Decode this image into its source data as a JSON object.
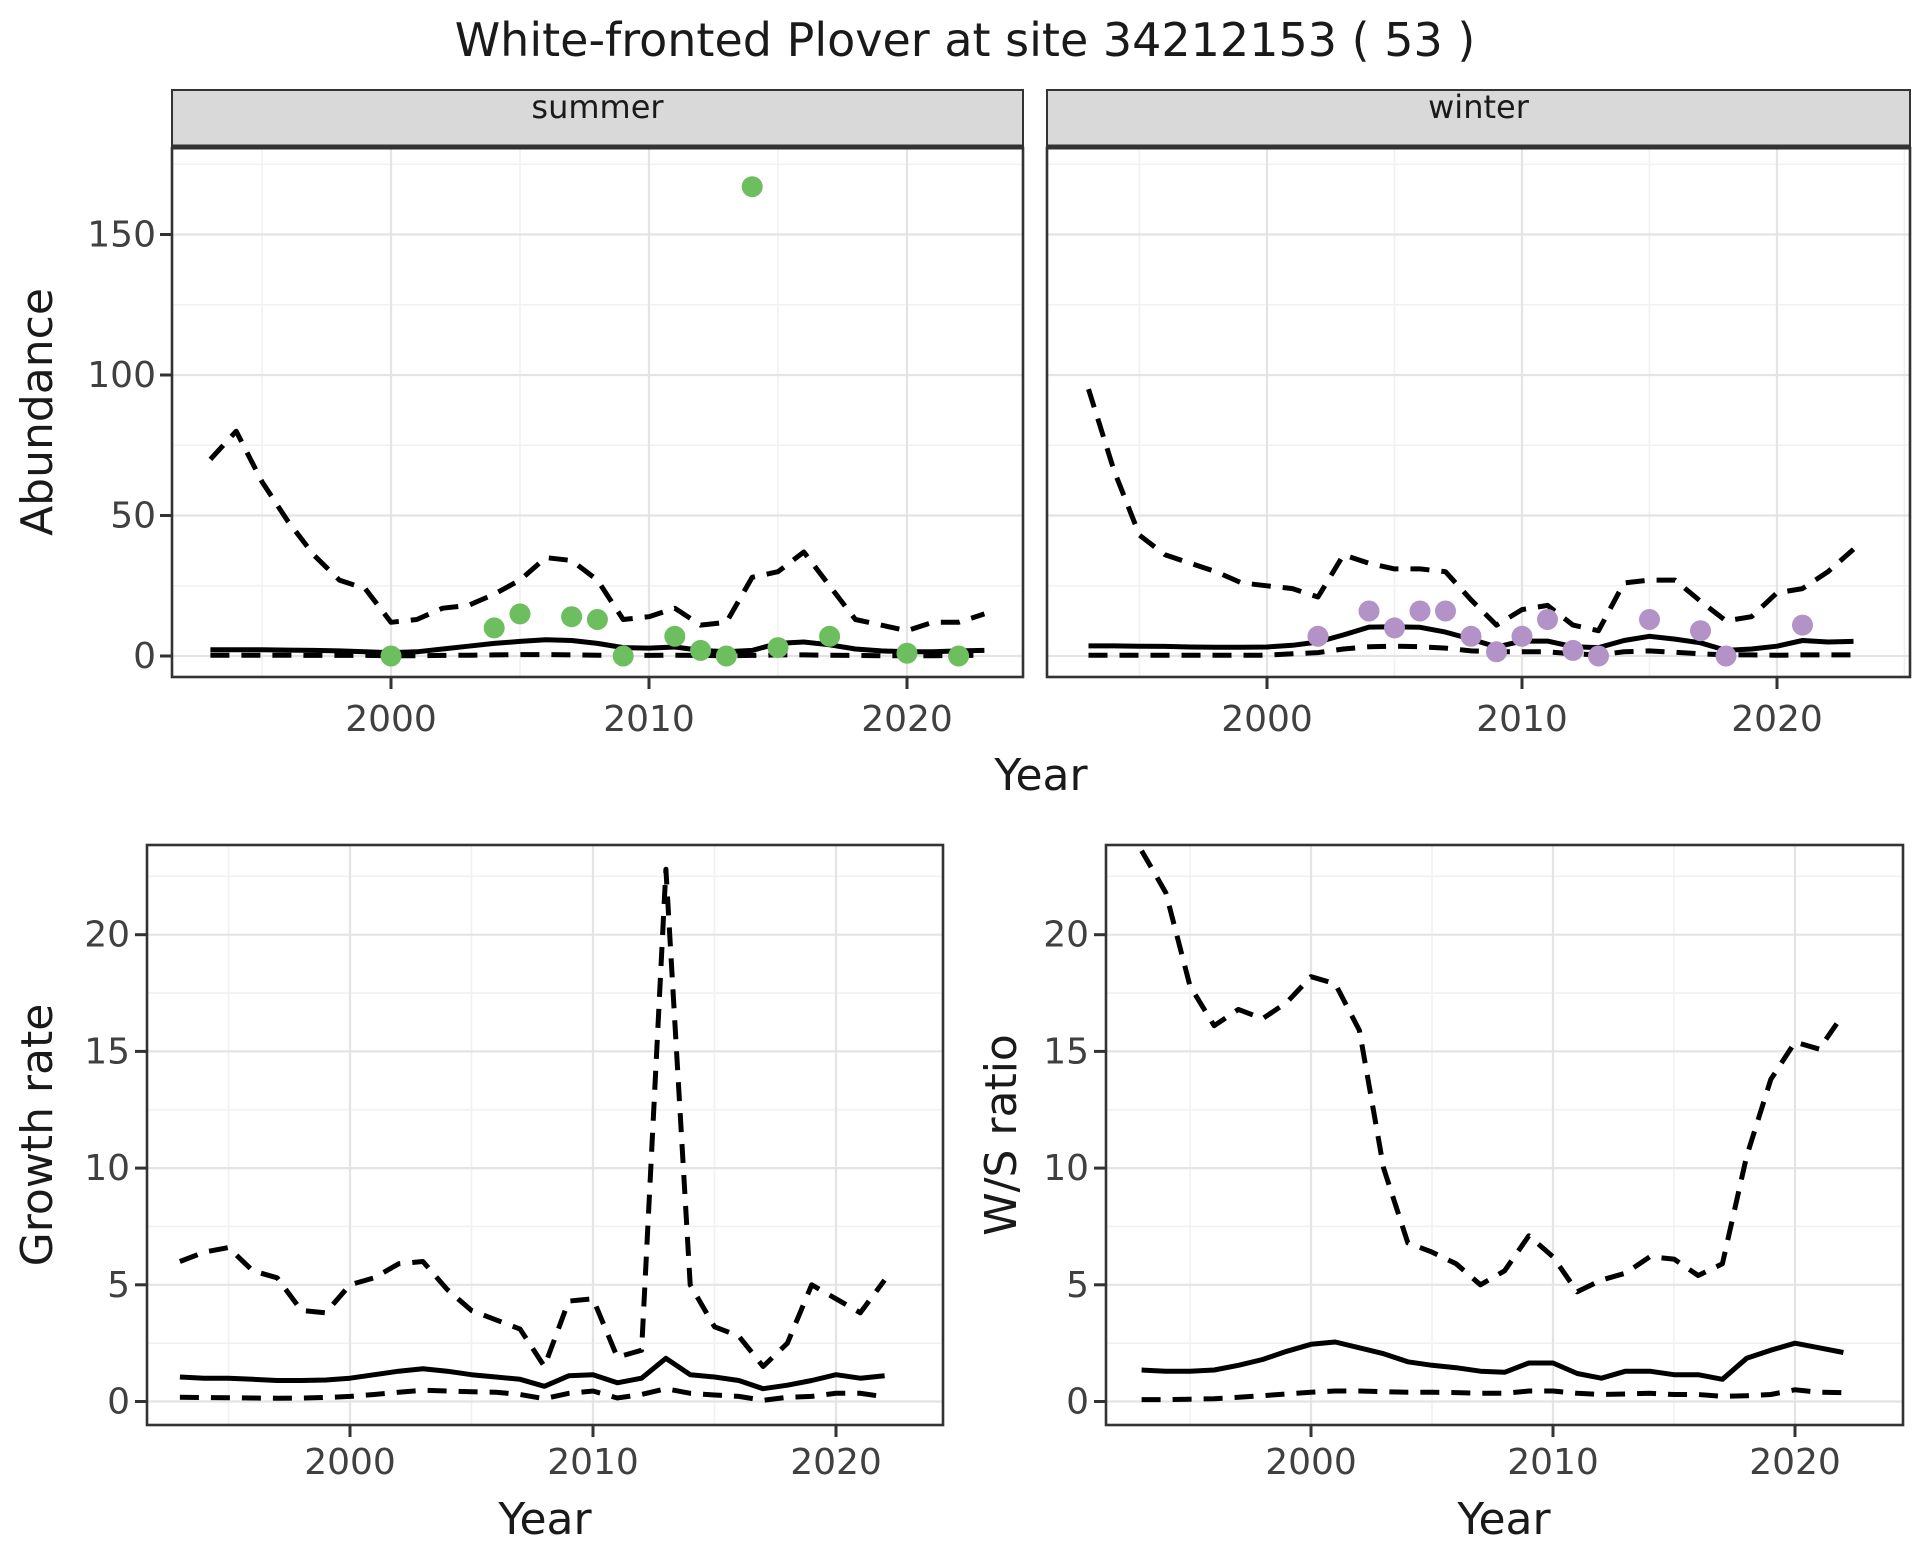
{
  "title": "White-fronted Plover at site 34212153 ( 53 )",
  "colors": {
    "summer_points": "#6DBE5E",
    "winter_points": "#B292C7",
    "line": "#000000",
    "strip_bg": "#D9D9D9",
    "strip_border": "#333333",
    "panel_border": "#333333",
    "panel_bg": "#FFFFFF",
    "grid_major": "#E4E4E4",
    "grid_minor": "#F1F1F1",
    "tick_label": "#404040",
    "text": "#1A1A1A"
  },
  "chart_data": {
    "type": "line+scatter",
    "layout_note": "2x2 panel figure; top row is a faceted abundance plot (summer | winter) sharing one x axis title; bottom row has two independent panels",
    "top_row_xlabel": "Year",
    "panels": [
      {
        "id": "summer",
        "facet_label": "summer",
        "ylabel": "Abundance",
        "xlabel": "Year",
        "xticks": [
          2000,
          2010,
          2020
        ],
        "yticks": [
          0,
          50,
          100,
          150
        ],
        "xlim": [
          1991.5,
          2024.5
        ],
        "ylim": [
          -7,
          181
        ],
        "grid": true,
        "point_color_key": "summer_points",
        "points": {
          "years": [
            2000,
            2004,
            2005,
            2007,
            2008,
            2009,
            2011,
            2012,
            2013,
            2014,
            2015,
            2017,
            2020,
            2022
          ],
          "values": [
            0,
            10,
            15,
            14,
            13,
            0,
            7,
            2,
            0,
            167,
            3,
            7,
            1,
            0
          ]
        },
        "median_line": {
          "start_year": 1993,
          "values": [
            2.2,
            2.2,
            2.2,
            2.1,
            2.0,
            1.8,
            1.5,
            1.2,
            1.5,
            2.5,
            3.5,
            4.5,
            5.2,
            5.8,
            5.5,
            4.5,
            3.0,
            2.8,
            3.2,
            2.0,
            1.5,
            2.0,
            4.5,
            5.0,
            4.0,
            2.5,
            1.8,
            1.5,
            1.5,
            1.8,
            2.0
          ]
        },
        "upper_ci": {
          "start_year": 1993,
          "values": [
            70,
            80,
            62,
            48,
            36,
            27,
            24,
            12,
            13,
            17,
            18,
            22,
            27,
            35,
            34,
            27,
            13,
            14,
            17,
            11,
            12,
            28,
            30,
            37,
            25,
            13,
            11,
            9,
            12,
            12,
            15
          ]
        },
        "lower_ci": {
          "start_year": 1993,
          "values": [
            0.3,
            0.3,
            0.3,
            0.3,
            0.2,
            0.2,
            0.2,
            0.1,
            0.1,
            0.2,
            0.3,
            0.4,
            0.5,
            0.5,
            0.4,
            0.3,
            0.2,
            0.2,
            0.3,
            0.2,
            0.1,
            0.2,
            0.4,
            0.4,
            0.3,
            0.2,
            0.1,
            0.1,
            0.1,
            0.2,
            0.2
          ]
        }
      },
      {
        "id": "winter",
        "facet_label": "winter",
        "ylabel": "Abundance",
        "xlabel": "Year",
        "xticks": [
          2000,
          2010,
          2020
        ],
        "yticks": [
          0,
          50,
          100,
          150
        ],
        "xlim": [
          1991.4,
          2025.2
        ],
        "ylim": [
          -7,
          181
        ],
        "grid": true,
        "point_color_key": "winter_points",
        "points": {
          "years": [
            2002,
            2004,
            2005,
            2006,
            2007,
            2008,
            2009,
            2010,
            2011,
            2012,
            2013,
            2015,
            2017,
            2018,
            2021
          ],
          "values": [
            7,
            16,
            10,
            16,
            16,
            7,
            1.5,
            7,
            13,
            2,
            0,
            13,
            9,
            0,
            11
          ]
        },
        "median_line": {
          "start_year": 1993,
          "values": [
            3.6,
            3.6,
            3.5,
            3.4,
            3.2,
            3.1,
            3.1,
            3.2,
            3.8,
            5.0,
            7.5,
            10.3,
            10.4,
            10.2,
            8.5,
            6.0,
            3.2,
            5.3,
            5.3,
            3.3,
            3.0,
            5.5,
            7.0,
            6.0,
            4.7,
            2.0,
            2.5,
            3.5,
            5.5,
            5.0,
            5.2
          ]
        },
        "upper_ci": {
          "start_year": 1993,
          "values": [
            95,
            66,
            43,
            36,
            33,
            30,
            26,
            25,
            24,
            21,
            36,
            33,
            31,
            31,
            30,
            20,
            11,
            16.5,
            18,
            11,
            9,
            26,
            27,
            27,
            19.5,
            12.5,
            14,
            22.5,
            24,
            30,
            38
          ]
        },
        "lower_ci": {
          "start_year": 1993,
          "values": [
            0.3,
            0.3,
            0.3,
            0.3,
            0.3,
            0.3,
            0.3,
            0.3,
            0.8,
            1.2,
            2.5,
            3.3,
            3.5,
            3.3,
            2.8,
            1.8,
            1.5,
            1.5,
            1.5,
            0.8,
            0.4,
            1.5,
            1.8,
            1.3,
            0.8,
            0.4,
            0.4,
            0.3,
            0.4,
            0.4,
            0.4
          ]
        }
      },
      {
        "id": "growth_rate",
        "facet_label": null,
        "ylabel": "Growth rate",
        "xlabel": "Year",
        "xticks": [
          2000,
          2010,
          2020
        ],
        "yticks": [
          0,
          5,
          10,
          15,
          20
        ],
        "xlim": [
          1991.7,
          2024.4
        ],
        "ylim": [
          -1,
          23.9
        ],
        "grid": true,
        "points": null,
        "median_line": {
          "start_year": 1993,
          "values": [
            1.05,
            1.0,
            1.0,
            0.95,
            0.9,
            0.9,
            0.92,
            1.0,
            1.15,
            1.3,
            1.4,
            1.3,
            1.15,
            1.05,
            0.95,
            0.65,
            1.1,
            1.15,
            0.8,
            1.0,
            1.85,
            1.15,
            1.05,
            0.9,
            0.55,
            0.7,
            0.9,
            1.15,
            1.0,
            1.1
          ]
        },
        "upper_ci": {
          "start_year": 1993,
          "values": [
            6.0,
            6.4,
            6.6,
            5.6,
            5.3,
            3.9,
            3.8,
            5.0,
            5.3,
            5.9,
            6.0,
            4.8,
            3.9,
            3.5,
            3.1,
            1.5,
            4.3,
            4.4,
            1.9,
            2.2,
            22.8,
            5.0,
            3.2,
            2.8,
            1.5,
            2.5,
            5.0,
            4.4,
            3.8,
            5.2
          ]
        },
        "lower_ci": {
          "start_year": 1993,
          "values": [
            0.18,
            0.17,
            0.16,
            0.15,
            0.14,
            0.15,
            0.17,
            0.22,
            0.3,
            0.4,
            0.48,
            0.45,
            0.42,
            0.4,
            0.3,
            0.12,
            0.35,
            0.45,
            0.15,
            0.3,
            0.55,
            0.35,
            0.28,
            0.22,
            0.05,
            0.18,
            0.22,
            0.35,
            0.35,
            0.2
          ]
        }
      },
      {
        "id": "ws_ratio",
        "facet_label": null,
        "ylabel": "W/S ratio",
        "xlabel": "Year",
        "xticks": [
          2000,
          2010,
          2020
        ],
        "yticks": [
          0,
          5,
          10,
          15,
          20
        ],
        "xlim": [
          1991.7,
          2024.5
        ],
        "ylim": [
          -1,
          23.9
        ],
        "grid": true,
        "points": null,
        "median_line": {
          "start_year": 1993,
          "values": [
            1.35,
            1.3,
            1.3,
            1.35,
            1.55,
            1.8,
            2.15,
            2.45,
            2.55,
            2.3,
            2.05,
            1.7,
            1.55,
            1.45,
            1.3,
            1.25,
            1.65,
            1.65,
            1.2,
            1.0,
            1.3,
            1.3,
            1.15,
            1.15,
            0.95,
            1.85,
            2.2,
            2.5,
            2.3,
            2.1
          ]
        },
        "upper_ci": {
          "start_year": 1993,
          "values": [
            23.6,
            21.8,
            17.8,
            16.1,
            16.8,
            16.4,
            17.1,
            18.2,
            17.9,
            15.9,
            10.0,
            6.8,
            6.4,
            5.9,
            5.0,
            5.6,
            7.1,
            6.2,
            4.7,
            5.2,
            5.5,
            6.2,
            6.1,
            5.4,
            5.9,
            10.5,
            13.8,
            15.4,
            15.1,
            16.6
          ]
        },
        "lower_ci": {
          "start_year": 1993,
          "values": [
            0.08,
            0.08,
            0.1,
            0.12,
            0.18,
            0.25,
            0.32,
            0.4,
            0.45,
            0.45,
            0.42,
            0.4,
            0.4,
            0.38,
            0.35,
            0.35,
            0.45,
            0.45,
            0.35,
            0.3,
            0.32,
            0.35,
            0.3,
            0.3,
            0.22,
            0.25,
            0.3,
            0.5,
            0.4,
            0.38
          ]
        }
      }
    ],
    "line_styles": {
      "median": "solid black",
      "upper_ci": "dashed black",
      "lower_ci": "dashed black"
    }
  }
}
